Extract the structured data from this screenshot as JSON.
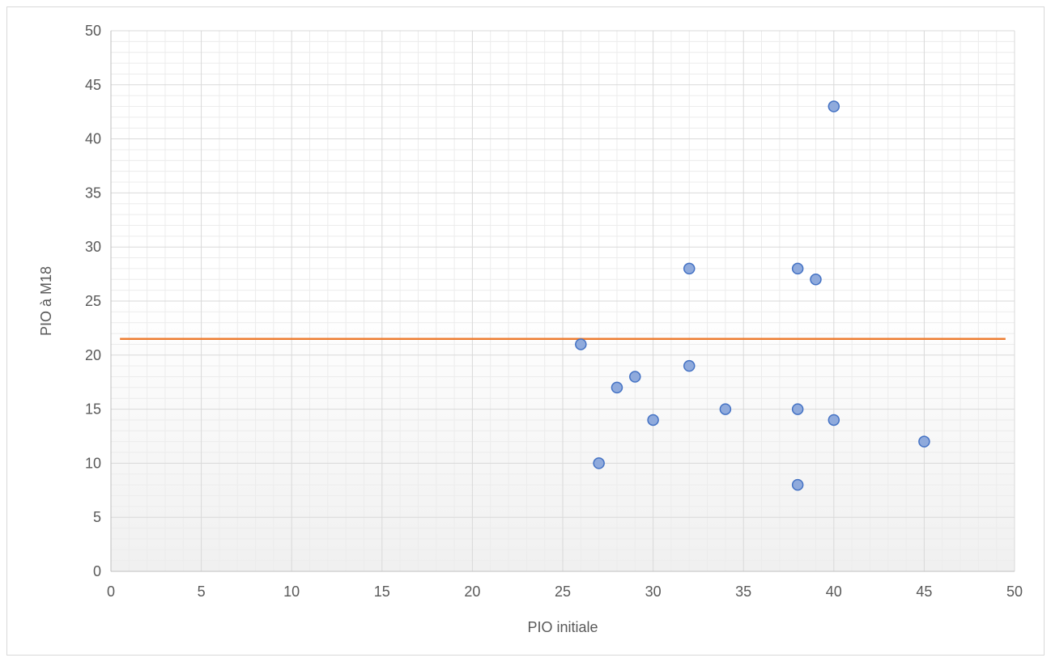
{
  "chart_data": {
    "type": "scatter",
    "title": "",
    "xlabel": "PIO initiale",
    "ylabel": "PIO à M18",
    "xlim": [
      0,
      50
    ],
    "ylim": [
      0,
      50
    ],
    "x_ticks": [
      "0",
      "5",
      "10",
      "15",
      "20",
      "25",
      "30",
      "35",
      "40",
      "45",
      "50"
    ],
    "y_ticks": [
      "0",
      "5",
      "10",
      "15",
      "20",
      "25",
      "30",
      "35",
      "40",
      "45",
      "50"
    ],
    "major_grid": true,
    "minor_grid": true,
    "legend": "none",
    "series": [
      {
        "type": "scatter",
        "color": "#4472c4",
        "fill": "#8faadc",
        "points": [
          {
            "x": 26,
            "y": 21
          },
          {
            "x": 27,
            "y": 10
          },
          {
            "x": 28,
            "y": 17
          },
          {
            "x": 29,
            "y": 18
          },
          {
            "x": 30,
            "y": 14
          },
          {
            "x": 32,
            "y": 28
          },
          {
            "x": 32,
            "y": 19
          },
          {
            "x": 34,
            "y": 15
          },
          {
            "x": 38,
            "y": 28
          },
          {
            "x": 38,
            "y": 15
          },
          {
            "x": 38,
            "y": 8
          },
          {
            "x": 39,
            "y": 27
          },
          {
            "x": 40,
            "y": 43
          },
          {
            "x": 40,
            "y": 14
          },
          {
            "x": 45,
            "y": 12
          }
        ]
      }
    ],
    "reference_line": {
      "y": 21.5,
      "x_start": 0.5,
      "x_end": 49.5,
      "color": "#ed7d31"
    }
  }
}
